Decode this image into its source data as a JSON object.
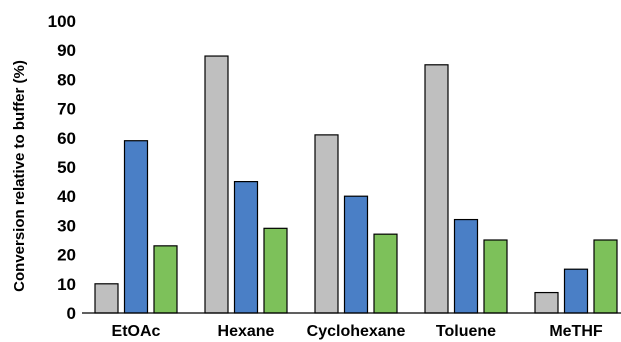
{
  "chart_data": {
    "type": "bar",
    "title": "",
    "xlabel": "",
    "ylabel": "Conversion relative to buffer (%)",
    "ylim": [
      0,
      100
    ],
    "yticks": [
      0,
      10,
      20,
      30,
      40,
      50,
      60,
      70,
      80,
      90,
      100
    ],
    "grid": false,
    "legend": "none",
    "categories": [
      "EtOAc",
      "Hexane",
      "Cyclohexane",
      "Toluene",
      "MeTHF"
    ],
    "series": [
      {
        "values": [
          10,
          88,
          61,
          85,
          7
        ],
        "color": "#bfbfbf"
      },
      {
        "values": [
          59,
          45,
          40,
          32,
          15
        ],
        "color": "#4a7fc6"
      },
      {
        "values": [
          23,
          29,
          27,
          25,
          25
        ],
        "color": "#7dc15a"
      }
    ]
  }
}
